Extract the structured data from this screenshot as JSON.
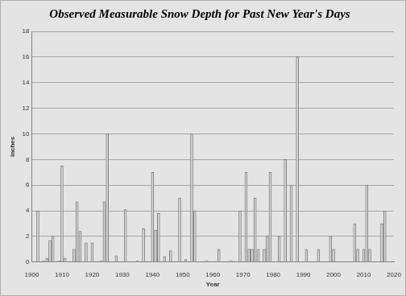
{
  "chart_data": {
    "type": "bar",
    "title": "Observed Measurable Snow Depth for Past New Year's Days",
    "x_label": "Year",
    "y_label": "Inches",
    "x": [
      1902,
      1904,
      1905,
      1906,
      1907,
      1909,
      1910,
      1911,
      1914,
      1915,
      1916,
      1918,
      1920,
      1923,
      1924,
      1925,
      1928,
      1931,
      1935,
      1937,
      1940,
      1941,
      1942,
      1944,
      1946,
      1949,
      1951,
      1953,
      1954,
      1958,
      1962,
      1966,
      1969,
      1971,
      1972,
      1973,
      1974,
      1975,
      1977,
      1978,
      1979,
      1982,
      1984,
      1986,
      1988,
      1991,
      1995,
      1999,
      2000,
      2007,
      2008,
      2010,
      2011,
      2012,
      2016,
      2017
    ],
    "values": [
      4,
      0.1,
      0.3,
      1.7,
      2,
      0.1,
      7.5,
      0.3,
      1,
      4.7,
      2.4,
      1.5,
      1.5,
      0.1,
      4.7,
      10,
      0.5,
      4.1,
      0.1,
      2.6,
      7,
      2.5,
      3.8,
      0.4,
      0.9,
      5,
      0.2,
      10,
      4,
      0.1,
      1,
      0.1,
      4,
      7,
      1,
      1,
      5,
      1,
      1,
      2,
      7,
      2,
      8,
      6,
      16,
      1,
      1,
      2,
      1,
      3,
      1,
      1,
      6,
      1,
      3,
      4
    ],
    "color": "#d9d9d9",
    "xlim": [
      1900,
      2020
    ],
    "xticks": [
      1900,
      1910,
      1920,
      1930,
      1940,
      1950,
      1960,
      1970,
      1980,
      1990,
      2000,
      2010,
      2020
    ],
    "ylim": [
      0,
      18
    ],
    "yticks": [
      0,
      2,
      4,
      6,
      8,
      10,
      12,
      14,
      16,
      18
    ],
    "grid": true
  }
}
